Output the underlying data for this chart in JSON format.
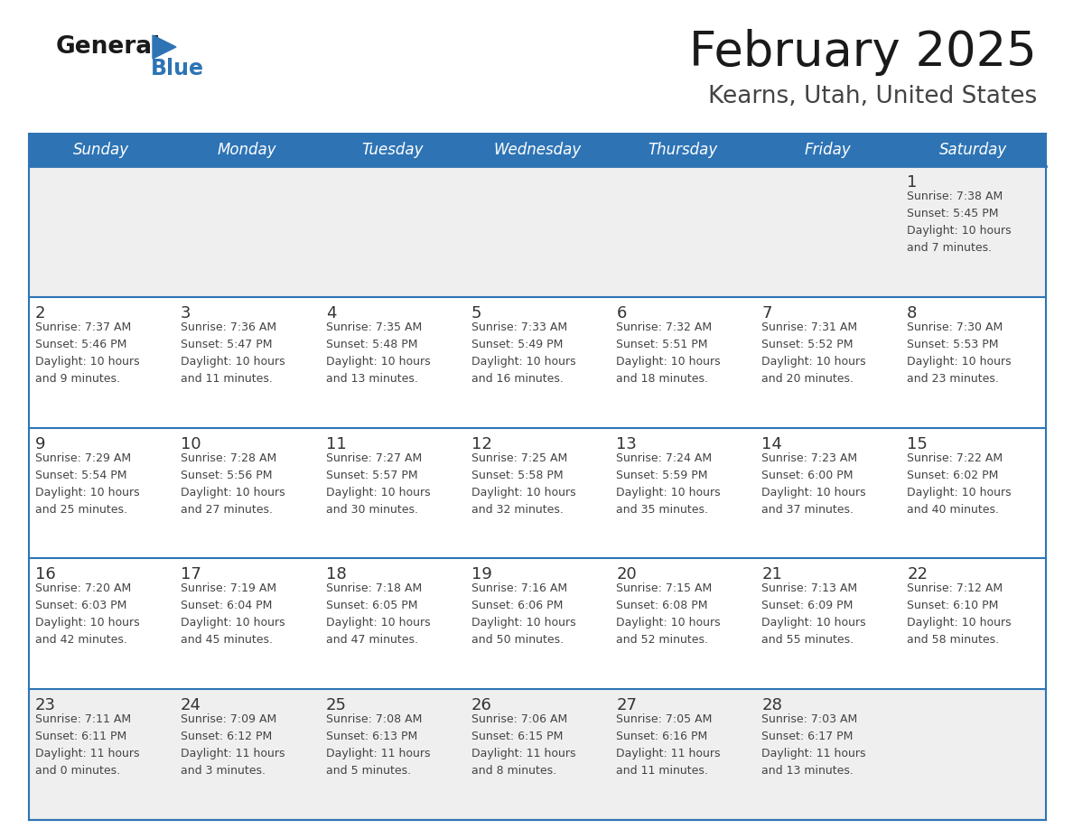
{
  "title": "February 2025",
  "subtitle": "Kearns, Utah, United States",
  "days_of_week": [
    "Sunday",
    "Monday",
    "Tuesday",
    "Wednesday",
    "Thursday",
    "Friday",
    "Saturday"
  ],
  "header_bg": "#2E74B5",
  "header_text": "#FFFFFF",
  "cell_bg_white": "#FFFFFF",
  "cell_bg_gray": "#EFEFEF",
  "separator_color": "#2E74B5",
  "day_num_color": "#333333",
  "cell_text_color": "#444444",
  "title_color": "#1A1A1A",
  "subtitle_color": "#444444",
  "logo_general_color": "#1A1A1A",
  "logo_blue_color": "#2E74B5",
  "weeks": [
    [
      {
        "day": null,
        "info": null
      },
      {
        "day": null,
        "info": null
      },
      {
        "day": null,
        "info": null
      },
      {
        "day": null,
        "info": null
      },
      {
        "day": null,
        "info": null
      },
      {
        "day": null,
        "info": null
      },
      {
        "day": 1,
        "info": "Sunrise: 7:38 AM\nSunset: 5:45 PM\nDaylight: 10 hours\nand 7 minutes."
      }
    ],
    [
      {
        "day": 2,
        "info": "Sunrise: 7:37 AM\nSunset: 5:46 PM\nDaylight: 10 hours\nand 9 minutes."
      },
      {
        "day": 3,
        "info": "Sunrise: 7:36 AM\nSunset: 5:47 PM\nDaylight: 10 hours\nand 11 minutes."
      },
      {
        "day": 4,
        "info": "Sunrise: 7:35 AM\nSunset: 5:48 PM\nDaylight: 10 hours\nand 13 minutes."
      },
      {
        "day": 5,
        "info": "Sunrise: 7:33 AM\nSunset: 5:49 PM\nDaylight: 10 hours\nand 16 minutes."
      },
      {
        "day": 6,
        "info": "Sunrise: 7:32 AM\nSunset: 5:51 PM\nDaylight: 10 hours\nand 18 minutes."
      },
      {
        "day": 7,
        "info": "Sunrise: 7:31 AM\nSunset: 5:52 PM\nDaylight: 10 hours\nand 20 minutes."
      },
      {
        "day": 8,
        "info": "Sunrise: 7:30 AM\nSunset: 5:53 PM\nDaylight: 10 hours\nand 23 minutes."
      }
    ],
    [
      {
        "day": 9,
        "info": "Sunrise: 7:29 AM\nSunset: 5:54 PM\nDaylight: 10 hours\nand 25 minutes."
      },
      {
        "day": 10,
        "info": "Sunrise: 7:28 AM\nSunset: 5:56 PM\nDaylight: 10 hours\nand 27 minutes."
      },
      {
        "day": 11,
        "info": "Sunrise: 7:27 AM\nSunset: 5:57 PM\nDaylight: 10 hours\nand 30 minutes."
      },
      {
        "day": 12,
        "info": "Sunrise: 7:25 AM\nSunset: 5:58 PM\nDaylight: 10 hours\nand 32 minutes."
      },
      {
        "day": 13,
        "info": "Sunrise: 7:24 AM\nSunset: 5:59 PM\nDaylight: 10 hours\nand 35 minutes."
      },
      {
        "day": 14,
        "info": "Sunrise: 7:23 AM\nSunset: 6:00 PM\nDaylight: 10 hours\nand 37 minutes."
      },
      {
        "day": 15,
        "info": "Sunrise: 7:22 AM\nSunset: 6:02 PM\nDaylight: 10 hours\nand 40 minutes."
      }
    ],
    [
      {
        "day": 16,
        "info": "Sunrise: 7:20 AM\nSunset: 6:03 PM\nDaylight: 10 hours\nand 42 minutes."
      },
      {
        "day": 17,
        "info": "Sunrise: 7:19 AM\nSunset: 6:04 PM\nDaylight: 10 hours\nand 45 minutes."
      },
      {
        "day": 18,
        "info": "Sunrise: 7:18 AM\nSunset: 6:05 PM\nDaylight: 10 hours\nand 47 minutes."
      },
      {
        "day": 19,
        "info": "Sunrise: 7:16 AM\nSunset: 6:06 PM\nDaylight: 10 hours\nand 50 minutes."
      },
      {
        "day": 20,
        "info": "Sunrise: 7:15 AM\nSunset: 6:08 PM\nDaylight: 10 hours\nand 52 minutes."
      },
      {
        "day": 21,
        "info": "Sunrise: 7:13 AM\nSunset: 6:09 PM\nDaylight: 10 hours\nand 55 minutes."
      },
      {
        "day": 22,
        "info": "Sunrise: 7:12 AM\nSunset: 6:10 PM\nDaylight: 10 hours\nand 58 minutes."
      }
    ],
    [
      {
        "day": 23,
        "info": "Sunrise: 7:11 AM\nSunset: 6:11 PM\nDaylight: 11 hours\nand 0 minutes."
      },
      {
        "day": 24,
        "info": "Sunrise: 7:09 AM\nSunset: 6:12 PM\nDaylight: 11 hours\nand 3 minutes."
      },
      {
        "day": 25,
        "info": "Sunrise: 7:08 AM\nSunset: 6:13 PM\nDaylight: 11 hours\nand 5 minutes."
      },
      {
        "day": 26,
        "info": "Sunrise: 7:06 AM\nSunset: 6:15 PM\nDaylight: 11 hours\nand 8 minutes."
      },
      {
        "day": 27,
        "info": "Sunrise: 7:05 AM\nSunset: 6:16 PM\nDaylight: 11 hours\nand 11 minutes."
      },
      {
        "day": 28,
        "info": "Sunrise: 7:03 AM\nSunset: 6:17 PM\nDaylight: 11 hours\nand 13 minutes."
      },
      {
        "day": null,
        "info": null
      }
    ]
  ],
  "week_bg": [
    "gray",
    "white",
    "white",
    "white",
    "gray"
  ],
  "figw": 11.88,
  "figh": 9.18,
  "dpi": 100
}
